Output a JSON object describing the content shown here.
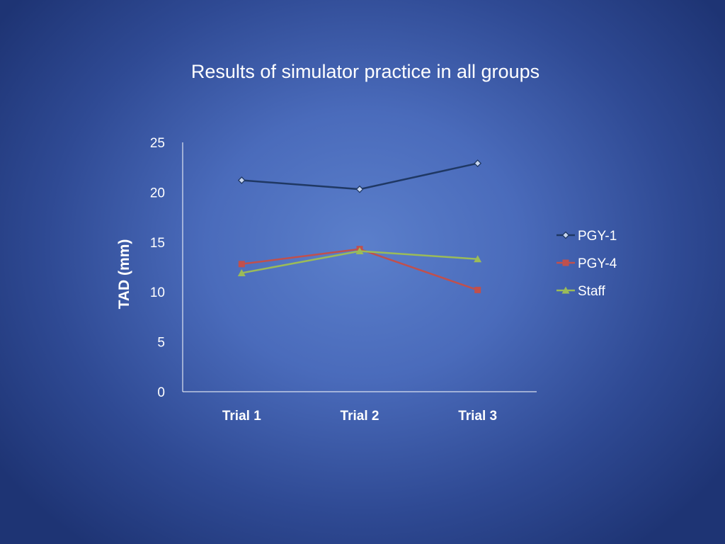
{
  "chart_data": {
    "type": "line",
    "title": "Results of simulator practice in all groups",
    "xlabel": "",
    "ylabel": "TAD (mm)",
    "categories": [
      "Trial 1",
      "Trial 2",
      "Trial 3"
    ],
    "ylim": [
      0,
      25
    ],
    "yticks": [
      0,
      5,
      10,
      15,
      20,
      25
    ],
    "grid": false,
    "legend_position": "right",
    "series": [
      {
        "name": "PGY-1",
        "values": [
          21.2,
          20.3,
          22.9
        ],
        "color": "#1f3864",
        "marker": "diamond"
      },
      {
        "name": "PGY-4",
        "values": [
          12.8,
          14.3,
          10.2
        ],
        "color": "#c0504d",
        "marker": "square"
      },
      {
        "name": "Staff",
        "values": [
          11.9,
          14.1,
          13.3
        ],
        "color": "#9bbb59",
        "marker": "triangle"
      }
    ]
  }
}
